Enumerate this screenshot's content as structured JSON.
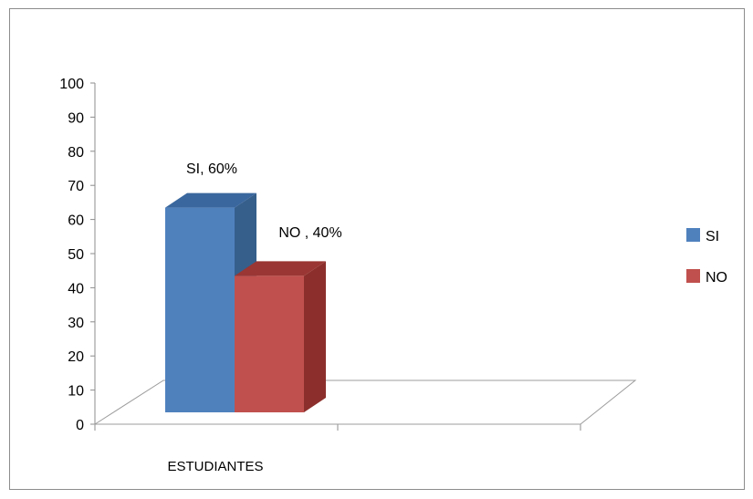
{
  "chart_data": {
    "type": "bar",
    "style": "3d-column",
    "title": "",
    "xlabel": "",
    "ylabel": "",
    "categories": [
      "ESTUDIANTES"
    ],
    "series": [
      {
        "name": "SI",
        "values": [
          60
        ],
        "data_label": "SI, 60%",
        "color": "#4f81bd",
        "top_color": "#3a679e",
        "side_color": "#365f8c"
      },
      {
        "name": "NO",
        "values": [
          40
        ],
        "data_label": "NO , 40%",
        "color": "#c0504d",
        "top_color": "#9a3633",
        "side_color": "#8c2f2c"
      }
    ],
    "ylim": [
      0,
      100
    ],
    "yticks": [
      0,
      10,
      20,
      30,
      40,
      50,
      60,
      70,
      80,
      90,
      100
    ],
    "grid": false,
    "legend_position": "right"
  }
}
